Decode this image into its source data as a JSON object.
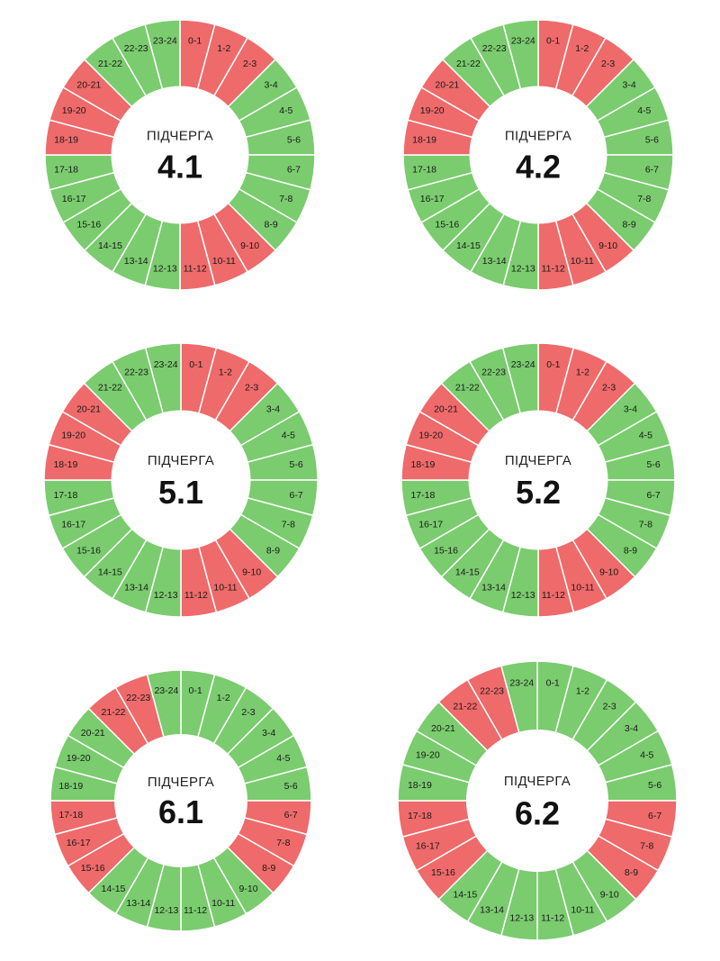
{
  "colors": {
    "on": "#7acc6e",
    "off": "#ef6a6a",
    "gap": "#ffffff"
  },
  "hour_labels": [
    "0-1",
    "1-2",
    "2-3",
    "3-4",
    "4-5",
    "5-6",
    "6-7",
    "7-8",
    "8-9",
    "9-10",
    "10-11",
    "11-12",
    "12-13",
    "13-14",
    "14-15",
    "15-16",
    "16-17",
    "17-18",
    "18-19",
    "19-20",
    "20-21",
    "21-22",
    "22-23",
    "23-24"
  ],
  "queues": [
    {
      "label": "ПІДЧЕРГА",
      "number": "4.1",
      "off_hours": [
        0,
        1,
        2,
        9,
        10,
        11,
        18,
        19,
        20
      ]
    },
    {
      "label": "ПІДЧЕРГА",
      "number": "4.2",
      "off_hours": [
        0,
        1,
        2,
        9,
        10,
        11,
        18,
        19,
        20
      ]
    },
    {
      "label": "ПІДЧЕРГА",
      "number": "5.1",
      "off_hours": [
        0,
        1,
        2,
        9,
        10,
        11,
        18,
        19,
        20
      ]
    },
    {
      "label": "ПІДЧЕРГА",
      "number": "5.2",
      "off_hours": [
        0,
        1,
        2,
        9,
        10,
        11,
        18,
        19,
        20
      ]
    },
    {
      "label": "ПІДЧЕРГА",
      "number": "6.1",
      "off_hours": [
        6,
        7,
        8,
        15,
        16,
        17,
        21,
        22
      ]
    },
    {
      "label": "ПІДЧЕРГА",
      "number": "6.2",
      "off_hours": [
        6,
        7,
        8,
        15,
        16,
        17,
        21,
        22
      ]
    }
  ]
}
